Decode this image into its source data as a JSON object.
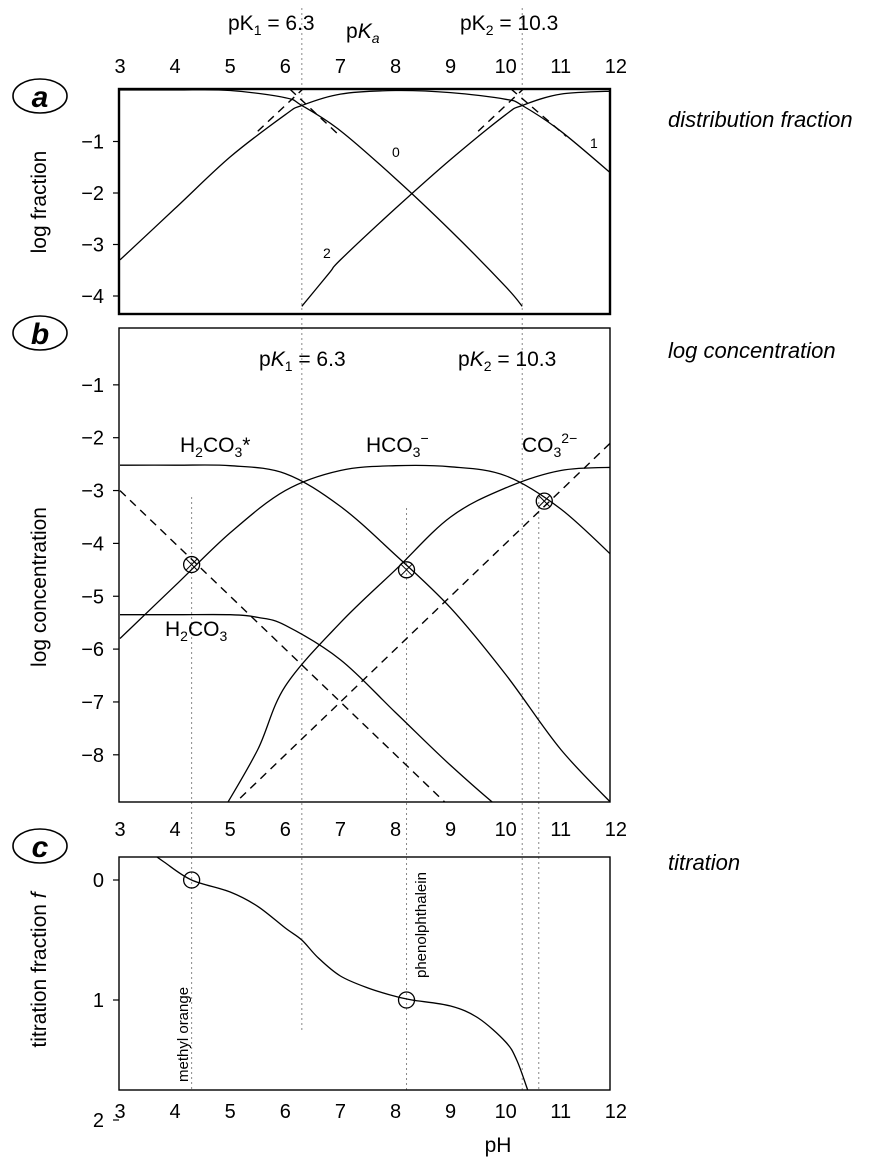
{
  "panels": {
    "a": {
      "badge": "a",
      "label": "distribution fraction",
      "ylabel": "log fraction",
      "yticks": [
        "−1",
        "−2",
        "−3",
        "−4"
      ],
      "curve_labels": [
        "0",
        "1",
        "2"
      ]
    },
    "b": {
      "badge": "b",
      "label": "log concentration",
      "ylabel": "log concentration",
      "yticks": [
        "−1",
        "−2",
        "−3",
        "−4",
        "−5",
        "−6",
        "−7",
        "−8"
      ]
    },
    "c": {
      "badge": "c",
      "label": "titration",
      "ylabel_pre": "titration fraction ",
      "ylabel_var": "f",
      "yticks": [
        "0",
        "1",
        "2"
      ]
    }
  },
  "top_axis": {
    "pk1_pre": "pK",
    "pk1_sub": "1",
    "pk1_val": " = 6.3",
    "pka_pre": "p",
    "pka_K": "K",
    "pka_sub": "a",
    "pk2_pre": "pK",
    "pk2_sub": "2",
    "pk2_val": " = 10.3"
  },
  "b_annotations": {
    "pk1_pre": "p",
    "pk1_K": "K",
    "pk1_sub": "1",
    "pk1_val": " = 6.3",
    "pk2_pre": "p",
    "pk2_K": "K",
    "pk2_sub": "2",
    "pk2_val": " = 10.3",
    "h2co3star_a": "H",
    "h2co3star_sub": "2",
    "h2co3star_b": "CO",
    "h2co3star_sub2": "3",
    "h2co3star_c": "*",
    "hco3_a": "HCO",
    "hco3_sub": "3",
    "hco3_sup": "−",
    "co3_a": "CO",
    "co3_sub": "3",
    "co3_sup": "2−",
    "h2co3_a": "H",
    "h2co3_sub": "2",
    "h2co3_b": "CO",
    "h2co3_sub2": "3"
  },
  "c_annotations": {
    "indicator1": "methyl orange",
    "indicator2": "phenolphthalein"
  },
  "xticks": [
    "3",
    "4",
    "5",
    "6",
    "7",
    "8",
    "9",
    "10",
    "11",
    "12"
  ],
  "xlabel": "pH",
  "chart_data": [
    {
      "type": "line",
      "title": "distribution fraction",
      "xlabel": "",
      "ylabel": "log fraction",
      "xlim": [
        3,
        12
      ],
      "ylim": [
        -4.2,
        0
      ],
      "pK": [
        6.3,
        10.3
      ],
      "series": [
        {
          "name": "0",
          "x": [
            3,
            4,
            5,
            6,
            6.3,
            7,
            8,
            9,
            10,
            10.3
          ],
          "y": [
            0,
            0,
            -0.01,
            -0.15,
            -0.3,
            -0.79,
            -1.72,
            -2.73,
            -3.82,
            -4.2
          ]
        },
        {
          "name": "1",
          "x": [
            3,
            4,
            5,
            6,
            6.3,
            7,
            8,
            9,
            10,
            10.3,
            11,
            12
          ],
          "y": [
            -3.3,
            -2.3,
            -1.3,
            -0.48,
            -0.3,
            -0.08,
            -0.01,
            -0.05,
            -0.18,
            -0.3,
            -0.8,
            -1.7
          ]
        },
        {
          "name": "2",
          "x": [
            6.3,
            6.8,
            7,
            8,
            9,
            10,
            10.3,
            11,
            12
          ],
          "y": [
            -4.2,
            -3.55,
            -3.3,
            -2.3,
            -1.35,
            -0.48,
            -0.3,
            -0.08,
            -0.02
          ]
        }
      ]
    },
    {
      "type": "line",
      "title": "log concentration",
      "xlabel": "",
      "ylabel": "log concentration",
      "xlim": [
        3,
        12
      ],
      "ylim": [
        -9,
        0
      ],
      "series": [
        {
          "name": "H2CO3*",
          "x": [
            3,
            4,
            5,
            6,
            7,
            8,
            9,
            10,
            11,
            12
          ],
          "y": [
            -2.52,
            -2.52,
            -2.53,
            -2.68,
            -3.3,
            -4.22,
            -5.22,
            -6.48,
            -7.9,
            -9
          ]
        },
        {
          "name": "HCO3−",
          "x": [
            3,
            4,
            5,
            6,
            7,
            8,
            9,
            10,
            11,
            12
          ],
          "y": [
            -5.8,
            -4.8,
            -3.8,
            -3.0,
            -2.62,
            -2.53,
            -2.55,
            -2.72,
            -3.35,
            -4.3
          ]
        },
        {
          "name": "CO3 2−",
          "x": [
            4.9,
            5.5,
            6,
            7,
            8,
            9,
            10,
            11,
            12
          ],
          "y": [
            -9,
            -7.9,
            -6.7,
            -5.5,
            -4.5,
            -3.5,
            -2.95,
            -2.62,
            -2.56
          ]
        },
        {
          "name": "H2CO3",
          "x": [
            3,
            4,
            5,
            5.5,
            6,
            7,
            8,
            9,
            10,
            11
          ],
          "y": [
            -5.35,
            -5.35,
            -5.35,
            -5.4,
            -5.55,
            -6.2,
            -7.2,
            -8.2,
            -9.1,
            -9.8
          ]
        },
        {
          "name": "H+",
          "x": [
            3,
            9
          ],
          "y": [
            -3,
            -9
          ]
        },
        {
          "name": "OH−",
          "x": [
            5,
            12
          ],
          "y": [
            -9,
            -2
          ]
        }
      ],
      "pK": [
        6.3,
        10.3
      ]
    },
    {
      "type": "line",
      "title": "titration",
      "xlabel": "pH",
      "ylabel": "titration fraction f",
      "xlim": [
        3,
        12
      ],
      "ylim": [
        2,
        -0.25
      ],
      "series": [
        {
          "name": "f",
          "x": [
            3.5,
            3.8,
            4.3,
            5.0,
            5.5,
            6.0,
            6.3,
            6.6,
            7.0,
            7.5,
            8.0,
            8.3,
            9.0,
            9.5,
            10.0,
            10.2,
            10.4,
            10.6
          ],
          "y": [
            -0.25,
            -0.15,
            0.0,
            0.1,
            0.22,
            0.4,
            0.5,
            0.65,
            0.8,
            0.9,
            0.97,
            1.0,
            1.05,
            1.15,
            1.35,
            1.5,
            1.75,
            2.0
          ]
        }
      ],
      "markers": [
        {
          "x": 4.3,
          "y": 0,
          "label": "methyl orange"
        },
        {
          "x": 8.2,
          "y": 1,
          "label": "phenolphthalein"
        },
        {
          "x": 10.6,
          "y": 2
        }
      ]
    }
  ]
}
